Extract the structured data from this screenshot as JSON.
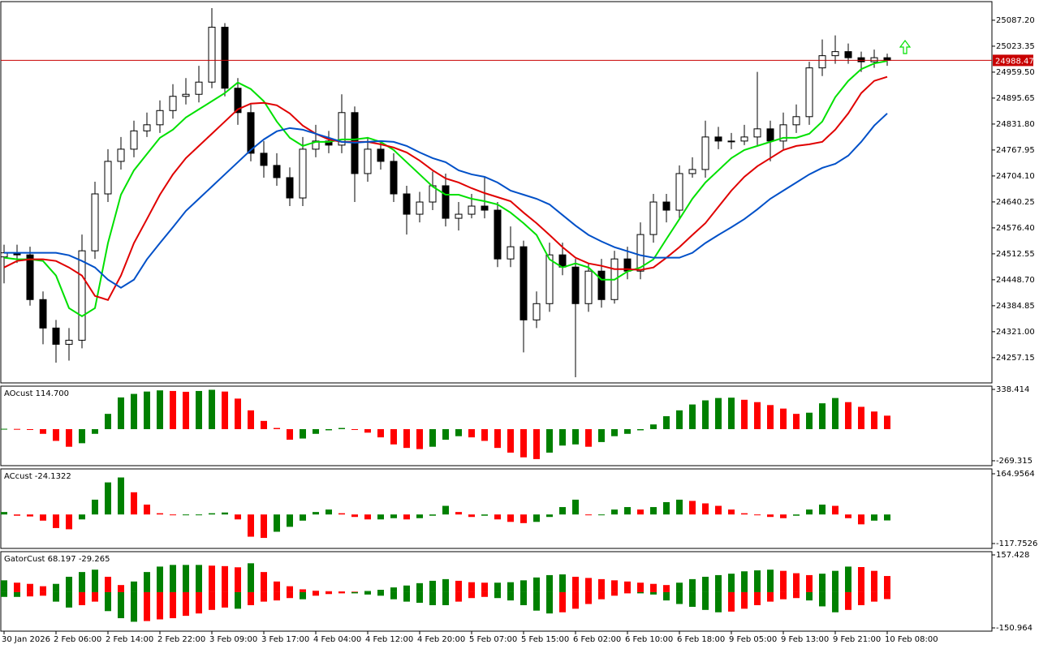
{
  "chart_data": [
    {
      "type": "candlestick",
      "categories": [
        "30 Jan 2026",
        null,
        null,
        null,
        "2 Feb 06:00",
        null,
        null,
        null,
        "2 Feb 14:00",
        null,
        null,
        null,
        "2 Feb 22:00",
        null,
        null,
        null,
        "3 Feb 09:00",
        null,
        null,
        null,
        "3 Feb 17:00",
        null,
        null,
        null,
        "4 Feb 04:00",
        null,
        null,
        null,
        "4 Feb 12:00",
        null,
        null,
        null,
        "4 Feb 20:00",
        null,
        null,
        null,
        "5 Feb 07:00",
        null,
        null,
        null,
        "5 Feb 15:00",
        null,
        null,
        null,
        "6 Feb 02:00",
        null,
        null,
        null,
        "6 Feb 10:00",
        null,
        null,
        null,
        "6 Feb 18:00",
        null,
        null,
        null,
        "9 Feb 05:00",
        null,
        null,
        null,
        "9 Feb 13:00",
        null,
        null,
        null,
        "9 Feb 21:00",
        null,
        null,
        null,
        "10 Feb 08:00"
      ],
      "open": [
        24505,
        24515,
        24510,
        24400,
        24330,
        24290,
        24300,
        24520,
        24660,
        24740,
        24770,
        24815,
        24830,
        24865,
        24900,
        24905,
        24935,
        25070,
        24920,
        24860,
        24760,
        24730,
        24700,
        24650,
        24770,
        24790,
        24780,
        24860,
        24710,
        24770,
        24740,
        24660,
        24610,
        24640,
        24680,
        24600,
        24610,
        24630,
        24620,
        24500,
        24530,
        24350,
        24390,
        24510,
        24480,
        24390,
        24470,
        24400,
        24500,
        24470,
        24560,
        24640,
        24620,
        24710,
        24720,
        24800,
        24790,
        24790,
        24800,
        24820,
        24790,
        24830,
        24850,
        24970,
        25000,
        25010,
        24995,
        24985,
        24995
      ],
      "high": [
        24535,
        24535,
        24530,
        24420,
        24350,
        24330,
        24560,
        24690,
        24770,
        24800,
        24840,
        24860,
        24890,
        24930,
        24945,
        24975,
        25117,
        25080,
        24945,
        24880,
        24790,
        24760,
        24725,
        24800,
        24830,
        24815,
        24905,
        24875,
        24800,
        24790,
        24760,
        24680,
        24665,
        24715,
        24710,
        24640,
        24660,
        24700,
        24640,
        24580,
        24545,
        24420,
        24540,
        24540,
        24500,
        24490,
        24500,
        24520,
        24530,
        24590,
        24660,
        24660,
        24730,
        24750,
        24840,
        24825,
        24810,
        24830,
        24960,
        24840,
        24860,
        24880,
        24985,
        25040,
        25050,
        25030,
        25010,
        25015,
        25005
      ],
      "low": [
        24440,
        24490,
        24385,
        24290,
        24245,
        24250,
        24280,
        24500,
        24640,
        24720,
        24750,
        24800,
        24810,
        24845,
        24880,
        24885,
        24920,
        24900,
        24830,
        24740,
        24700,
        24680,
        24630,
        24630,
        24750,
        24760,
        24760,
        24640,
        24690,
        24720,
        24640,
        24560,
        24590,
        24620,
        24580,
        24570,
        24600,
        24600,
        24480,
        24480,
        24270,
        24330,
        24370,
        24460,
        24209,
        24370,
        24380,
        24390,
        24450,
        24450,
        24540,
        24590,
        24600,
        24700,
        24700,
        24770,
        24770,
        24780,
        24780,
        24740,
        24770,
        24810,
        24830,
        24950,
        24980,
        24980,
        24960,
        24970,
        24975
      ],
      "close": [
        24515,
        24510,
        24400,
        24330,
        24290,
        24300,
        24520,
        24660,
        24740,
        24770,
        24815,
        24830,
        24865,
        24900,
        24905,
        24935,
        25070,
        24920,
        24860,
        24760,
        24730,
        24700,
        24650,
        24770,
        24790,
        24780,
        24860,
        24710,
        24770,
        24740,
        24660,
        24610,
        24640,
        24680,
        24600,
        24610,
        24630,
        24620,
        24500,
        24530,
        24350,
        24390,
        24510,
        24480,
        24390,
        24470,
        24400,
        24500,
        24470,
        24560,
        24640,
        24620,
        24710,
        24720,
        24800,
        24790,
        24790,
        24800,
        24820,
        24790,
        24830,
        24850,
        24970,
        25000,
        25010,
        24995,
        24985,
        24995,
        24988.47
      ],
      "series": [
        {
          "color": "#00e000",
          "values": [
            24503,
            24499,
            24499,
            24495,
            24459,
            24379,
            24359,
            24379,
            24539,
            24658,
            24718,
            24758,
            24798,
            24818,
            24848,
            24868,
            24888,
            24908,
            24934,
            24918,
            24888,
            24838,
            24798,
            24778,
            24788,
            24788,
            24794,
            24794,
            24798,
            24788,
            24768,
            24738,
            24708,
            24678,
            24658,
            24658,
            24648,
            24642,
            24634,
            24614,
            24588,
            24559,
            24499,
            24479,
            24489,
            24479,
            24449,
            24449,
            24469,
            24479,
            24499,
            24549,
            24598,
            24648,
            24688,
            24718,
            24748,
            24768,
            24778,
            24788,
            24798,
            24798,
            24808,
            24838,
            24898,
            24938,
            24967,
            24981,
            24987
          ]
        },
        {
          "color": "#e00000",
          "values": [
            24479,
            24495,
            24499,
            24499,
            24495,
            24479,
            24459,
            24409,
            24399,
            24459,
            24539,
            24598,
            24658,
            24708,
            24748,
            24778,
            24808,
            24838,
            24868,
            24882,
            24884,
            24878,
            24858,
            24828,
            24808,
            24794,
            24788,
            24788,
            24788,
            24782,
            24774,
            24762,
            24742,
            24718,
            24698,
            24688,
            24674,
            24662,
            24652,
            24642,
            24614,
            24588,
            24559,
            24529,
            24503,
            24489,
            24483,
            24475,
            24475,
            24473,
            24479,
            24503,
            24529,
            24559,
            24588,
            24628,
            24668,
            24702,
            24728,
            24748,
            24768,
            24778,
            24782,
            24788,
            24818,
            24858,
            24908,
            24938,
            24948
          ]
        },
        {
          "color": "#0050c8",
          "values": [
            24515,
            24515,
            24515,
            24515,
            24515,
            24509,
            24495,
            24479,
            24449,
            24429,
            24449,
            24499,
            24539,
            24578,
            24618,
            24648,
            24678,
            24708,
            24738,
            24768,
            24794,
            24814,
            24822,
            24818,
            24808,
            24798,
            24788,
            24786,
            24788,
            24790,
            24788,
            24778,
            24762,
            24748,
            24738,
            24718,
            24708,
            24702,
            24688,
            24668,
            24658,
            24648,
            24634,
            24608,
            24582,
            24559,
            24543,
            24529,
            24519,
            24509,
            24503,
            24503,
            24503,
            24515,
            24539,
            24559,
            24578,
            24598,
            24622,
            24648,
            24668,
            24688,
            24708,
            24724,
            24734,
            24754,
            24788,
            24828,
            24858
          ]
        }
      ],
      "bull_color": "#ffffff",
      "bear_color": "#000000",
      "current_price": 24988.47,
      "current_price_color": "#c80000",
      "ylim": [
        24195,
        25133
      ],
      "yticks": [
        {
          "value": 25087.2,
          "label": "25087.20"
        },
        25023.35,
        {
          "value": 24959.5,
          "label": "24959.50"
        },
        24895.65,
        {
          "value": 24831.8,
          "label": "24831.80"
        },
        24767.95,
        {
          "value": 24704.1,
          "label": "24704.10"
        },
        24640.25,
        {
          "value": 24576.4,
          "label": "24576.40"
        },
        24512.55,
        {
          "value": 24448.7,
          "label": "24448.70"
        },
        24384.85,
        {
          "value": 24321,
          "label": "24321.00"
        },
        24257.15
      ]
    },
    {
      "type": "bar",
      "title": "AOcust 114.700",
      "up_color": "#008000",
      "down_color": "#ff0000",
      "values": [
        3,
        2,
        -5,
        -40,
        -100,
        -150,
        -120,
        -40,
        130,
        270,
        300,
        320,
        330,
        325,
        318,
        325,
        335,
        320,
        260,
        160,
        70,
        10,
        -90,
        -80,
        -40,
        -10,
        10,
        -5,
        -30,
        -70,
        -130,
        -160,
        -170,
        -150,
        -90,
        -60,
        -70,
        -100,
        -160,
        -200,
        -240,
        -255,
        -200,
        -140,
        -130,
        -150,
        -110,
        -60,
        -40,
        -10,
        40,
        110,
        160,
        210,
        245,
        265,
        268,
        250,
        230,
        205,
        175,
        130,
        140,
        220,
        265,
        230,
        190,
        150,
        114.7
      ],
      "ylim": [
        -311,
        366
      ],
      "yticks": [
        338.414,
        -269.315
      ]
    },
    {
      "type": "bar",
      "title": "ACcust -24.1322",
      "up_color": "#008000",
      "down_color": "#ff0000",
      "values": [
        10,
        -5,
        -8,
        -25,
        -55,
        -60,
        -20,
        60,
        130,
        150,
        90,
        40,
        5,
        -3,
        -3,
        0,
        5,
        8,
        -20,
        -90,
        -95,
        -70,
        -50,
        -25,
        10,
        20,
        5,
        -10,
        -20,
        -20,
        -15,
        -20,
        -15,
        -5,
        35,
        10,
        -10,
        -5,
        -20,
        -30,
        -35,
        -30,
        -10,
        30,
        60,
        0,
        0,
        20,
        30,
        20,
        30,
        50,
        60,
        55,
        45,
        35,
        20,
        5,
        0,
        -10,
        -15,
        -5,
        20,
        40,
        35,
        -15,
        -40,
        -25,
        -24.1322
      ],
      "ylim": [
        -137.5,
        184.7
      ],
      "yticks": [
        164.9564,
        -117.7526
      ]
    },
    {
      "type": "gator",
      "title": "GatorCust 68.197 -29.265",
      "up_color": "#008000",
      "down_color": "#ff0000",
      "series": [
        {
          "values": [
            50,
            40,
            35,
            25,
            35,
            65,
            85,
            95,
            65,
            30,
            45,
            85,
            108,
            115,
            115,
            115,
            112,
            110,
            105,
            122,
            85,
            45,
            25,
            12,
            6,
            4,
            3,
            2,
            5,
            10,
            20,
            28,
            38,
            48,
            55,
            48,
            42,
            40,
            40,
            42,
            50,
            62,
            72,
            75,
            65,
            60,
            55,
            50,
            45,
            40,
            35,
            30,
            40,
            55,
            65,
            72,
            78,
            88,
            92,
            95,
            90,
            80,
            72,
            78,
            90,
            108,
            106,
            90,
            68.197
          ]
        },
        {
          "values": [
            -20,
            -20,
            -18,
            -15,
            -40,
            -65,
            -55,
            -40,
            -80,
            -110,
            -125,
            -122,
            -115,
            -110,
            -100,
            -90,
            -75,
            -65,
            -70,
            -55,
            -40,
            -35,
            -25,
            -30,
            -15,
            -8,
            -5,
            -5,
            -10,
            -15,
            -30,
            -40,
            -45,
            -55,
            -55,
            -40,
            -25,
            -20,
            -25,
            -35,
            -55,
            -78,
            -90,
            -85,
            -70,
            -50,
            -30,
            -15,
            -5,
            -5,
            -10,
            -35,
            -50,
            -62,
            -75,
            -85,
            -82,
            -70,
            -55,
            -40,
            -30,
            -25,
            -35,
            -60,
            -85,
            -75,
            -55,
            -40,
            -29.265
          ]
        }
      ],
      "ylim": [
        -164.7,
        171.1
      ],
      "yticks": [
        157.428,
        -150.964
      ]
    }
  ]
}
